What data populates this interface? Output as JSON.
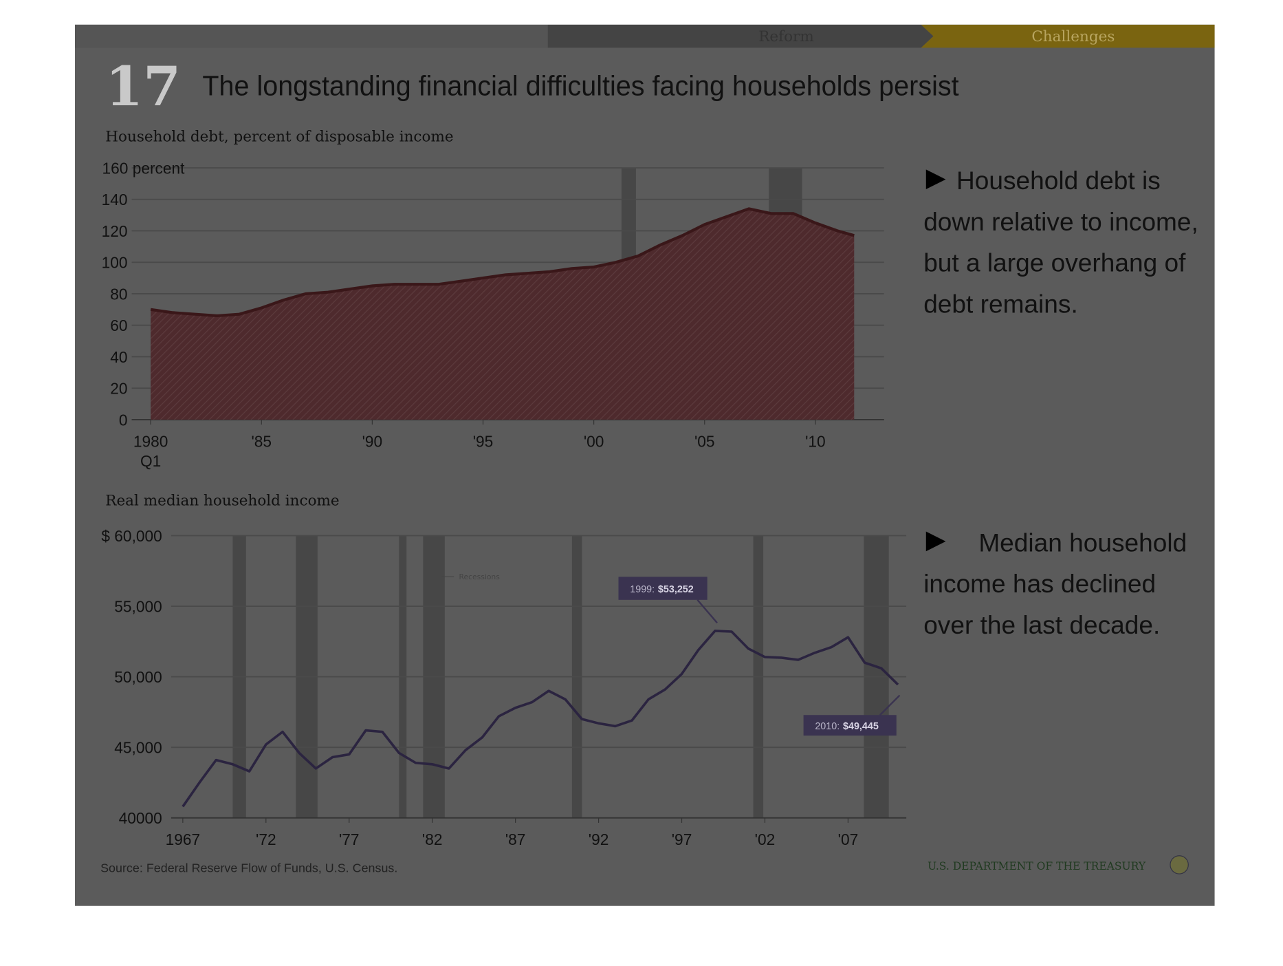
{
  "header": {
    "tabs": [
      "Reform",
      "Challenges"
    ],
    "number": "17",
    "title": "The longstanding financial difficulties facing households persist"
  },
  "bullets": [
    "Household debt is down relative to income, but a large overhang of debt remains.",
    "Median household income has declined over the last decade."
  ],
  "source": "Source: Federal Reserve Flow of Funds, U.S. Census.",
  "footer": "U.S. DEPARTMENT OF THE TREASURY",
  "chart_data": [
    {
      "type": "area",
      "title": "Household debt, percent of disposable income",
      "color": "#4e2a2d",
      "line_color": "#3a1719",
      "x": [
        1980,
        1981,
        1982,
        1983,
        1984,
        1985,
        1986,
        1987,
        1988,
        1989,
        1990,
        1991,
        1992,
        1993,
        1994,
        1995,
        1996,
        1997,
        1998,
        1999,
        2000,
        2001,
        2002,
        2003,
        2004,
        2005,
        2006,
        2007,
        2008,
        2009,
        2010,
        2011,
        2011.75
      ],
      "values": [
        70,
        68,
        67,
        66,
        67,
        71,
        76,
        80,
        81,
        83,
        85,
        86,
        86,
        86,
        88,
        90,
        92,
        93,
        94,
        96,
        97,
        100,
        104,
        111,
        117,
        124,
        129,
        134,
        131,
        131,
        125,
        120,
        117
      ],
      "recessions": [
        [
          2001.25,
          2001.9
        ],
        [
          2007.9,
          2009.4
        ]
      ],
      "xlim": [
        1979.7,
        2013.1
      ],
      "xticks": [
        {
          "value": 1980,
          "label": "1980 Q1"
        },
        {
          "value": 1985,
          "label": "'85"
        },
        {
          "value": 1990,
          "label": "'90"
        },
        {
          "value": 1995,
          "label": "'95"
        },
        {
          "value": 2000,
          "label": "'00"
        },
        {
          "value": 2005,
          "label": "'05"
        },
        {
          "value": 2010,
          "label": "'10"
        }
      ],
      "ylim": [
        0,
        160
      ],
      "yticks": [
        0,
        20,
        40,
        60,
        80,
        100,
        120,
        140,
        {
          "value": 160,
          "label": "160 percent"
        }
      ],
      "grid": true
    },
    {
      "type": "line",
      "title": "Real median household income",
      "color": "#2b2440",
      "legend": "Recessions",
      "x": [
        1967,
        1968,
        1969,
        1970,
        1971,
        1972,
        1973,
        1974,
        1975,
        1976,
        1977,
        1978,
        1979,
        1980,
        1981,
        1982,
        1983,
        1984,
        1985,
        1986,
        1987,
        1988,
        1989,
        1990,
        1991,
        1992,
        1993,
        1994,
        1995,
        1996,
        1997,
        1998,
        1999,
        2000,
        2001,
        2002,
        2003,
        2004,
        2005,
        2006,
        2007,
        2008,
        2009,
        2010
      ],
      "values": [
        40800,
        42500,
        44100,
        43800,
        43300,
        45200,
        46100,
        44600,
        43500,
        44300,
        44500,
        46200,
        46100,
        44600,
        43900,
        43800,
        43500,
        44800,
        45700,
        47200,
        47800,
        48200,
        49000,
        48400,
        47000,
        46700,
        46500,
        46900,
        48400,
        49100,
        50200,
        51900,
        53252,
        53200,
        52000,
        51400,
        51350,
        51200,
        51700,
        52100,
        52800,
        51000,
        50600,
        49445
      ],
      "annotations": [
        {
          "prefix": "1999:",
          "value": "$53,252"
        },
        {
          "prefix": "2010:",
          "value": "$49,445"
        }
      ],
      "recessions": [
        [
          1970,
          1970.8
        ],
        [
          1973.8,
          1975.1
        ],
        [
          1980,
          1980.45
        ],
        [
          1981.45,
          1982.75
        ],
        [
          1990.4,
          1991
        ],
        [
          2001.3,
          2001.9
        ],
        [
          2007.95,
          2009.45
        ]
      ],
      "xlim": [
        1966.3,
        2010.5
      ],
      "xticks": [
        1967,
        {
          "value": 1972,
          "label": "'72"
        },
        {
          "value": 1977,
          "label": "'77"
        },
        {
          "value": 1982,
          "label": "'82"
        },
        {
          "value": 1987,
          "label": "'87"
        },
        {
          "value": 1992,
          "label": "'92"
        },
        {
          "value": 1997,
          "label": "'97"
        },
        {
          "value": 2002,
          "label": "'02"
        },
        {
          "value": 2007,
          "label": "'07"
        }
      ],
      "ylim": [
        40000,
        60000
      ],
      "yticks": [
        40000,
        {
          "value": 45000,
          "label": "45,000"
        },
        {
          "value": 50000,
          "label": "50,000"
        },
        {
          "value": 55000,
          "label": "55,000"
        },
        {
          "value": 60000,
          "label": "$ 60,000"
        }
      ],
      "grid": true
    }
  ]
}
